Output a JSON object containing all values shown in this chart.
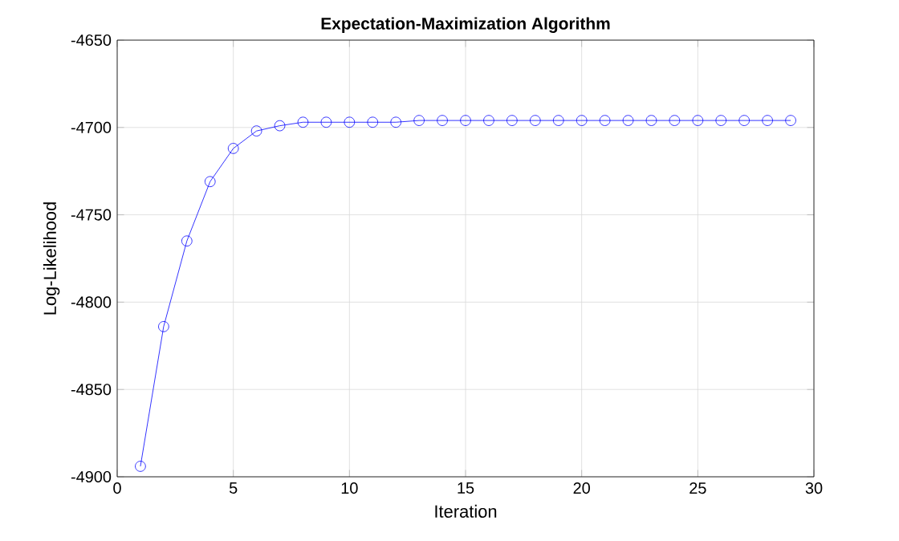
{
  "chart_data": {
    "type": "line",
    "title": "Expectation-Maximization Algorithm",
    "xlabel": "Iteration",
    "ylabel": "Log-Likelihood",
    "x": [
      1,
      2,
      3,
      4,
      5,
      6,
      7,
      8,
      9,
      10,
      11,
      12,
      13,
      14,
      15,
      16,
      17,
      18,
      19,
      20,
      21,
      22,
      23,
      24,
      25,
      26,
      27,
      28,
      29
    ],
    "series": [
      {
        "color": "#0000ff",
        "values": [
          -4894,
          -4814,
          -4765,
          -4731,
          -4712,
          -4702,
          -4699,
          -4697,
          -4697,
          -4697,
          -4697,
          -4697,
          -4696,
          -4696,
          -4696,
          -4696,
          -4696,
          -4696,
          -4696,
          -4696,
          -4696,
          -4696,
          -4696,
          -4696,
          -4696,
          -4696,
          -4696,
          -4696,
          -4696
        ]
      }
    ],
    "xlim": [
      0,
      30
    ],
    "xticks": [
      0,
      5,
      10,
      15,
      20,
      25,
      30
    ],
    "ylim": [
      -4900,
      -4650
    ],
    "yticks": [
      -4900,
      -4850,
      -4800,
      -4750,
      -4700,
      -4650
    ],
    "grid": true,
    "marker": "circle",
    "line_style": "solid"
  }
}
